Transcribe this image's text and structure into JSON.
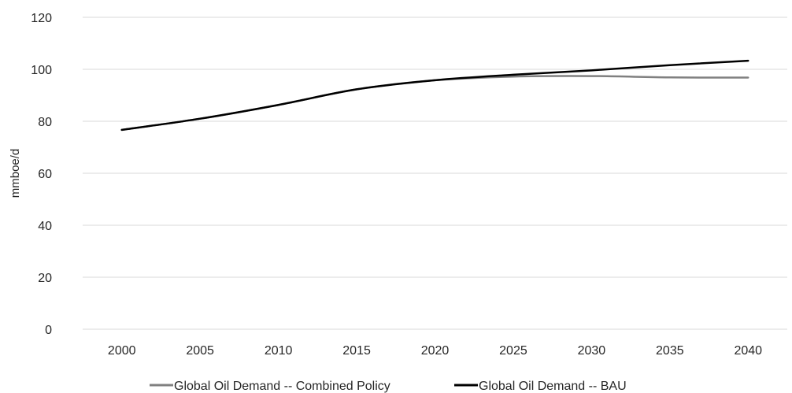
{
  "chart_data": {
    "type": "line",
    "title": "",
    "xlabel": "",
    "ylabel": "mmboe/d",
    "x": [
      2000,
      2005,
      2010,
      2015,
      2020,
      2025,
      2030,
      2035,
      2040
    ],
    "ylim": [
      0,
      120
    ],
    "yticks": [
      0,
      20,
      40,
      60,
      80,
      100,
      120
    ],
    "grid": true,
    "legend_position": "bottom",
    "series": [
      {
        "name": "Global Oil Demand -- Combined Policy",
        "color": "#808080",
        "values": [
          76.7,
          81.0,
          86.3,
          92.3,
          95.8,
          97.2,
          97.4,
          96.9,
          96.8
        ]
      },
      {
        "name": "Global Oil Demand -- BAU",
        "color": "#000000",
        "values": [
          76.7,
          81.0,
          86.3,
          92.3,
          95.8,
          97.9,
          99.6,
          101.6,
          103.3
        ]
      }
    ]
  }
}
